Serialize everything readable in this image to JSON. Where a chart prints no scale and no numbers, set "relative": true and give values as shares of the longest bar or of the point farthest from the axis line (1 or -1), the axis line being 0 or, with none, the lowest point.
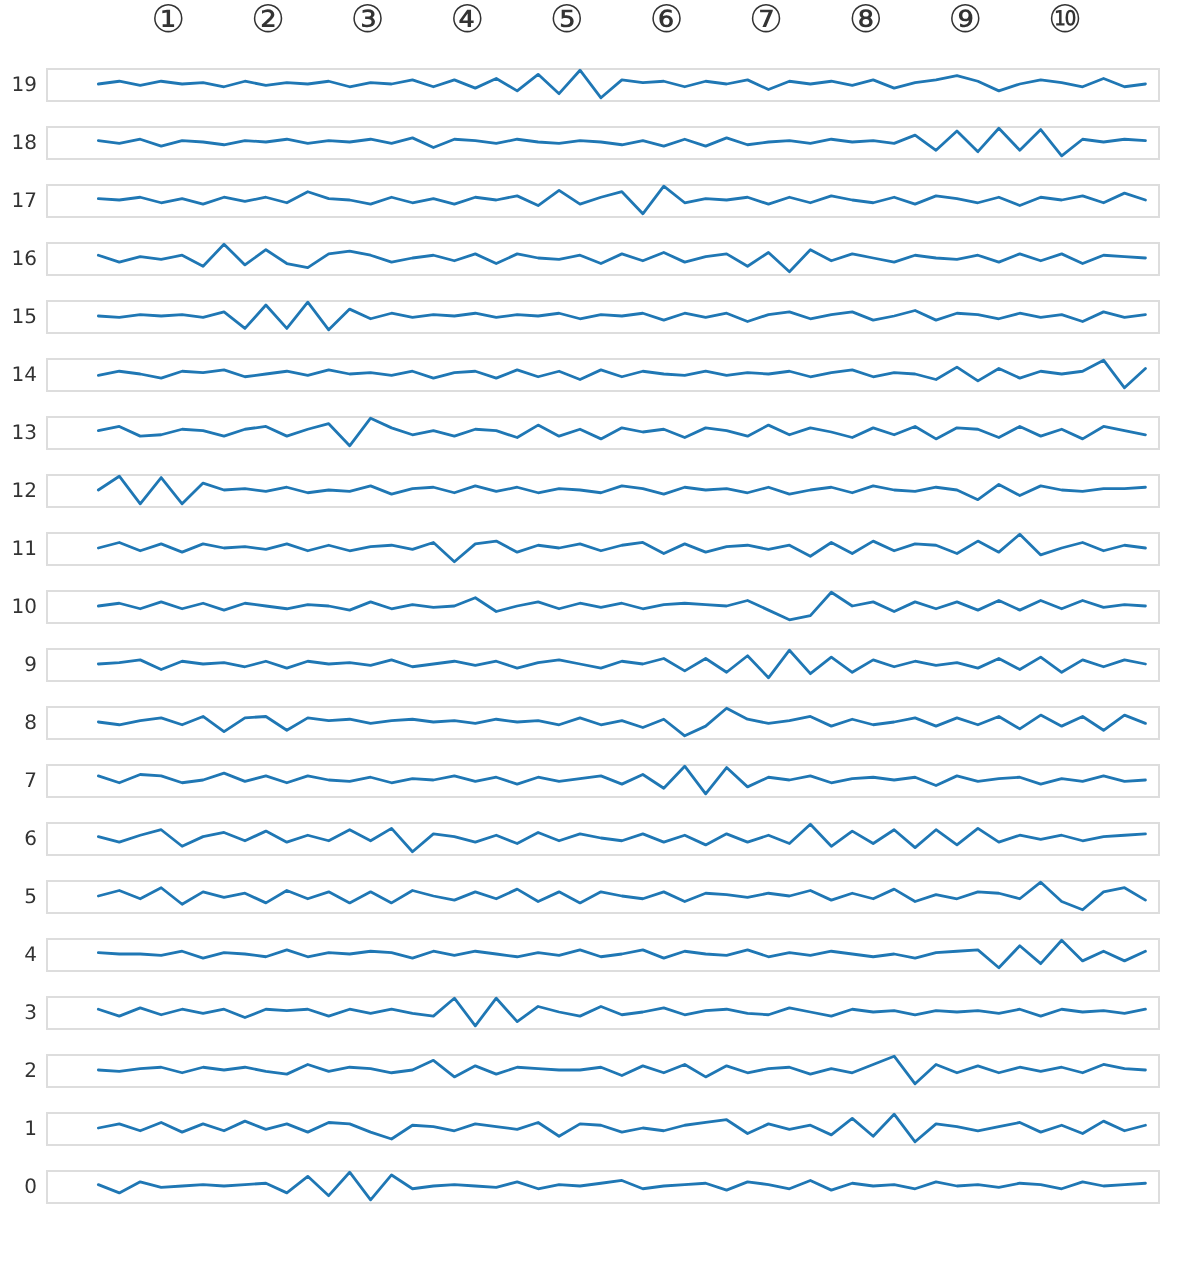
{
  "chart_data": [
    {
      "type": "line",
      "relative": true,
      "ylabel": "19",
      "tick_labels": false,
      "annotations": [
        "①",
        "②",
        "③",
        "④",
        "⑤",
        "⑥",
        "⑦",
        "⑧",
        "⑨",
        "⑩"
      ],
      "categories": [
        null,
        null,
        null,
        null,
        null,
        null,
        null,
        null,
        null,
        null,
        null,
        null,
        null,
        null,
        null,
        null,
        null,
        null,
        null,
        null,
        null,
        null,
        null,
        null,
        null,
        null,
        null,
        null,
        null,
        null,
        null,
        null,
        null,
        null,
        null,
        null,
        null,
        null,
        null,
        null,
        null,
        null,
        null,
        null,
        null,
        null,
        null,
        null,
        null,
        null,
        null
      ],
      "series": [
        {
          "color": "#1f77b4",
          "values": [
            0.5,
            0.6,
            0.45,
            0.6,
            0.5,
            0.55,
            0.4,
            0.6,
            0.45,
            0.55,
            0.5,
            0.6,
            0.4,
            0.55,
            0.5,
            0.65,
            0.4,
            0.65,
            0.35,
            0.7,
            0.25,
            0.85,
            0.15,
            1,
            0,
            0.65,
            0.55,
            0.6,
            0.4,
            0.6,
            0.5,
            0.65,
            0.3,
            0.6,
            0.5,
            0.6,
            0.45,
            0.65,
            0.35,
            0.55,
            0.65,
            0.8,
            0.6,
            0.25,
            0.5,
            0.65,
            0.55,
            0.4,
            0.7,
            0.4,
            0.5
          ]
        }
      ]
    },
    {
      "type": "line",
      "relative": true,
      "ylabel": "18",
      "tick_labels": false,
      "categories": [
        null,
        null,
        null,
        null,
        null,
        null,
        null,
        null,
        null,
        null,
        null,
        null,
        null,
        null,
        null,
        null,
        null,
        null,
        null,
        null,
        null,
        null,
        null,
        null,
        null,
        null,
        null,
        null,
        null,
        null,
        null,
        null,
        null,
        null,
        null,
        null,
        null,
        null,
        null,
        null,
        null,
        null,
        null,
        null,
        null,
        null,
        null,
        null,
        null,
        null,
        null
      ],
      "series": [
        {
          "color": "#1f77b4",
          "values": [
            0.55,
            0.45,
            0.6,
            0.35,
            0.55,
            0.5,
            0.4,
            0.55,
            0.5,
            0.6,
            0.45,
            0.55,
            0.5,
            0.6,
            0.45,
            0.65,
            0.3,
            0.6,
            0.55,
            0.45,
            0.6,
            0.5,
            0.45,
            0.55,
            0.5,
            0.4,
            0.55,
            0.35,
            0.6,
            0.35,
            0.65,
            0.4,
            0.5,
            0.55,
            0.45,
            0.6,
            0.5,
            0.55,
            0.45,
            0.75,
            0.2,
            0.9,
            0.15,
            1,
            0.2,
            0.95,
            0,
            0.6,
            0.5,
            0.6,
            0.55
          ]
        }
      ]
    },
    {
      "type": "line",
      "relative": true,
      "ylabel": "17",
      "tick_labels": false,
      "categories": [
        null,
        null,
        null,
        null,
        null,
        null,
        null,
        null,
        null,
        null,
        null,
        null,
        null,
        null,
        null,
        null,
        null,
        null,
        null,
        null,
        null,
        null,
        null,
        null,
        null,
        null,
        null,
        null,
        null,
        null,
        null,
        null,
        null,
        null,
        null,
        null,
        null,
        null,
        null,
        null,
        null,
        null,
        null,
        null,
        null,
        null,
        null,
        null,
        null,
        null,
        null
      ],
      "series": [
        {
          "color": "#1f77b4",
          "values": [
            0.55,
            0.5,
            0.6,
            0.4,
            0.55,
            0.35,
            0.6,
            0.45,
            0.6,
            0.4,
            0.8,
            0.55,
            0.5,
            0.35,
            0.6,
            0.4,
            0.55,
            0.35,
            0.6,
            0.5,
            0.65,
            0.3,
            0.85,
            0.35,
            0.6,
            0.8,
            0,
            1,
            0.4,
            0.55,
            0.5,
            0.6,
            0.35,
            0.6,
            0.4,
            0.65,
            0.5,
            0.4,
            0.6,
            0.35,
            0.65,
            0.55,
            0.4,
            0.6,
            0.3,
            0.6,
            0.5,
            0.65,
            0.4,
            0.75,
            0.5
          ]
        }
      ]
    },
    {
      "type": "line",
      "relative": true,
      "ylabel": "16",
      "tick_labels": false,
      "categories": [
        null,
        null,
        null,
        null,
        null,
        null,
        null,
        null,
        null,
        null,
        null,
        null,
        null,
        null,
        null,
        null,
        null,
        null,
        null,
        null,
        null,
        null,
        null,
        null,
        null,
        null,
        null,
        null,
        null,
        null,
        null,
        null,
        null,
        null,
        null,
        null,
        null,
        null,
        null,
        null,
        null,
        null,
        null,
        null,
        null,
        null,
        null,
        null,
        null,
        null,
        null
      ],
      "series": [
        {
          "color": "#1f77b4",
          "values": [
            0.6,
            0.35,
            0.55,
            0.45,
            0.6,
            0.2,
            1,
            0.25,
            0.8,
            0.3,
            0.15,
            0.65,
            0.75,
            0.6,
            0.35,
            0.5,
            0.6,
            0.4,
            0.65,
            0.3,
            0.65,
            0.5,
            0.45,
            0.6,
            0.3,
            0.65,
            0.4,
            0.7,
            0.35,
            0.55,
            0.65,
            0.2,
            0.7,
            0,
            0.8,
            0.4,
            0.65,
            0.5,
            0.35,
            0.6,
            0.5,
            0.45,
            0.6,
            0.35,
            0.65,
            0.4,
            0.65,
            0.3,
            0.6,
            0.55,
            0.5
          ]
        }
      ]
    },
    {
      "type": "line",
      "relative": true,
      "ylabel": "15",
      "tick_labels": false,
      "categories": [
        null,
        null,
        null,
        null,
        null,
        null,
        null,
        null,
        null,
        null,
        null,
        null,
        null,
        null,
        null,
        null,
        null,
        null,
        null,
        null,
        null,
        null,
        null,
        null,
        null,
        null,
        null,
        null,
        null,
        null,
        null,
        null,
        null,
        null,
        null,
        null,
        null,
        null,
        null,
        null,
        null,
        null,
        null,
        null,
        null,
        null,
        null,
        null,
        null,
        null,
        null
      ],
      "series": [
        {
          "color": "#1f77b4",
          "values": [
            0.5,
            0.45,
            0.55,
            0.5,
            0.55,
            0.45,
            0.65,
            0.05,
            0.9,
            0.05,
            1,
            0,
            0.75,
            0.4,
            0.6,
            0.45,
            0.55,
            0.5,
            0.6,
            0.45,
            0.55,
            0.5,
            0.6,
            0.4,
            0.55,
            0.5,
            0.6,
            0.35,
            0.6,
            0.45,
            0.6,
            0.3,
            0.55,
            0.65,
            0.4,
            0.55,
            0.65,
            0.35,
            0.5,
            0.7,
            0.35,
            0.6,
            0.55,
            0.4,
            0.6,
            0.45,
            0.55,
            0.3,
            0.65,
            0.45,
            0.55
          ]
        }
      ]
    },
    {
      "type": "line",
      "relative": true,
      "ylabel": "14",
      "tick_labels": false,
      "categories": [
        null,
        null,
        null,
        null,
        null,
        null,
        null,
        null,
        null,
        null,
        null,
        null,
        null,
        null,
        null,
        null,
        null,
        null,
        null,
        null,
        null,
        null,
        null,
        null,
        null,
        null,
        null,
        null,
        null,
        null,
        null,
        null,
        null,
        null,
        null,
        null,
        null,
        null,
        null,
        null,
        null,
        null,
        null,
        null,
        null,
        null,
        null,
        null,
        null,
        null,
        null
      ],
      "series": [
        {
          "color": "#1f77b4",
          "values": [
            0.45,
            0.6,
            0.5,
            0.35,
            0.6,
            0.55,
            0.65,
            0.4,
            0.5,
            0.6,
            0.45,
            0.65,
            0.5,
            0.55,
            0.45,
            0.6,
            0.35,
            0.55,
            0.6,
            0.35,
            0.65,
            0.4,
            0.6,
            0.3,
            0.65,
            0.4,
            0.6,
            0.5,
            0.45,
            0.6,
            0.45,
            0.55,
            0.5,
            0.6,
            0.4,
            0.55,
            0.65,
            0.4,
            0.55,
            0.5,
            0.3,
            0.75,
            0.25,
            0.7,
            0.35,
            0.6,
            0.5,
            0.6,
            1,
            0,
            0.7
          ]
        }
      ]
    },
    {
      "type": "line",
      "relative": true,
      "ylabel": "13",
      "tick_labels": false,
      "categories": [
        null,
        null,
        null,
        null,
        null,
        null,
        null,
        null,
        null,
        null,
        null,
        null,
        null,
        null,
        null,
        null,
        null,
        null,
        null,
        null,
        null,
        null,
        null,
        null,
        null,
        null,
        null,
        null,
        null,
        null,
        null,
        null,
        null,
        null,
        null,
        null,
        null,
        null,
        null,
        null,
        null,
        null,
        null,
        null,
        null,
        null,
        null,
        null,
        null,
        null,
        null
      ],
      "series": [
        {
          "color": "#1f77b4",
          "values": [
            0.55,
            0.7,
            0.35,
            0.4,
            0.6,
            0.55,
            0.35,
            0.6,
            0.7,
            0.35,
            0.6,
            0.8,
            0,
            1,
            0.65,
            0.4,
            0.55,
            0.35,
            0.6,
            0.55,
            0.3,
            0.75,
            0.35,
            0.6,
            0.25,
            0.65,
            0.5,
            0.6,
            0.3,
            0.65,
            0.55,
            0.35,
            0.75,
            0.4,
            0.65,
            0.5,
            0.3,
            0.65,
            0.4,
            0.7,
            0.25,
            0.65,
            0.6,
            0.3,
            0.7,
            0.35,
            0.6,
            0.25,
            0.7,
            0.55,
            0.4
          ]
        }
      ]
    },
    {
      "type": "line",
      "relative": true,
      "ylabel": "12",
      "tick_labels": false,
      "categories": [
        null,
        null,
        null,
        null,
        null,
        null,
        null,
        null,
        null,
        null,
        null,
        null,
        null,
        null,
        null,
        null,
        null,
        null,
        null,
        null,
        null,
        null,
        null,
        null,
        null,
        null,
        null,
        null,
        null,
        null,
        null,
        null,
        null,
        null,
        null,
        null,
        null,
        null,
        null,
        null,
        null,
        null,
        null,
        null,
        null,
        null,
        null,
        null,
        null,
        null,
        null
      ],
      "series": [
        {
          "color": "#1f77b4",
          "values": [
            0.5,
            1,
            0,
            0.95,
            0,
            0.75,
            0.5,
            0.55,
            0.45,
            0.6,
            0.4,
            0.5,
            0.45,
            0.65,
            0.35,
            0.55,
            0.6,
            0.4,
            0.65,
            0.45,
            0.6,
            0.4,
            0.55,
            0.5,
            0.4,
            0.65,
            0.55,
            0.35,
            0.6,
            0.5,
            0.55,
            0.4,
            0.6,
            0.35,
            0.5,
            0.6,
            0.4,
            0.65,
            0.5,
            0.45,
            0.6,
            0.5,
            0.15,
            0.7,
            0.3,
            0.65,
            0.5,
            0.45,
            0.55,
            0.55,
            0.6
          ]
        }
      ]
    },
    {
      "type": "line",
      "relative": true,
      "ylabel": "11",
      "tick_labels": false,
      "categories": [
        null,
        null,
        null,
        null,
        null,
        null,
        null,
        null,
        null,
        null,
        null,
        null,
        null,
        null,
        null,
        null,
        null,
        null,
        null,
        null,
        null,
        null,
        null,
        null,
        null,
        null,
        null,
        null,
        null,
        null,
        null,
        null,
        null,
        null,
        null,
        null,
        null,
        null,
        null,
        null,
        null,
        null,
        null,
        null,
        null,
        null,
        null,
        null,
        null,
        null,
        null
      ],
      "series": [
        {
          "color": "#1f77b4",
          "values": [
            0.5,
            0.7,
            0.4,
            0.65,
            0.35,
            0.65,
            0.5,
            0.55,
            0.45,
            0.65,
            0.4,
            0.6,
            0.4,
            0.55,
            0.6,
            0.45,
            0.7,
            0,
            0.65,
            0.75,
            0.35,
            0.6,
            0.5,
            0.65,
            0.4,
            0.6,
            0.7,
            0.3,
            0.65,
            0.35,
            0.55,
            0.6,
            0.45,
            0.6,
            0.2,
            0.7,
            0.3,
            0.75,
            0.4,
            0.65,
            0.6,
            0.3,
            0.75,
            0.35,
            1,
            0.25,
            0.5,
            0.7,
            0.4,
            0.6,
            0.5
          ]
        }
      ]
    },
    {
      "type": "line",
      "relative": true,
      "ylabel": "10",
      "tick_labels": false,
      "categories": [
        null,
        null,
        null,
        null,
        null,
        null,
        null,
        null,
        null,
        null,
        null,
        null,
        null,
        null,
        null,
        null,
        null,
        null,
        null,
        null,
        null,
        null,
        null,
        null,
        null,
        null,
        null,
        null,
        null,
        null,
        null,
        null,
        null,
        null,
        null,
        null,
        null,
        null,
        null,
        null,
        null,
        null,
        null,
        null,
        null,
        null,
        null,
        null,
        null,
        null,
        null
      ],
      "series": [
        {
          "color": "#1f77b4",
          "values": [
            0.5,
            0.6,
            0.4,
            0.65,
            0.4,
            0.6,
            0.35,
            0.6,
            0.5,
            0.4,
            0.55,
            0.5,
            0.35,
            0.65,
            0.4,
            0.55,
            0.45,
            0.5,
            0.8,
            0.3,
            0.5,
            0.65,
            0.4,
            0.6,
            0.45,
            0.6,
            0.4,
            0.55,
            0.6,
            0.55,
            0.5,
            0.7,
            0.35,
            0,
            0.15,
            1,
            0.5,
            0.65,
            0.3,
            0.65,
            0.4,
            0.65,
            0.35,
            0.7,
            0.35,
            0.7,
            0.4,
            0.7,
            0.45,
            0.55,
            0.5
          ]
        }
      ]
    },
    {
      "type": "line",
      "relative": true,
      "ylabel": "9",
      "tick_labels": false,
      "categories": [
        null,
        null,
        null,
        null,
        null,
        null,
        null,
        null,
        null,
        null,
        null,
        null,
        null,
        null,
        null,
        null,
        null,
        null,
        null,
        null,
        null,
        null,
        null,
        null,
        null,
        null,
        null,
        null,
        null,
        null,
        null,
        null,
        null,
        null,
        null,
        null,
        null,
        null,
        null,
        null,
        null,
        null,
        null,
        null,
        null,
        null,
        null,
        null,
        null,
        null,
        null
      ],
      "series": [
        {
          "color": "#1f77b4",
          "values": [
            0.5,
            0.55,
            0.65,
            0.3,
            0.6,
            0.5,
            0.55,
            0.4,
            0.6,
            0.35,
            0.6,
            0.5,
            0.55,
            0.45,
            0.65,
            0.4,
            0.5,
            0.6,
            0.45,
            0.6,
            0.35,
            0.55,
            0.65,
            0.5,
            0.35,
            0.6,
            0.5,
            0.7,
            0.25,
            0.7,
            0.2,
            0.8,
            0,
            1,
            0.15,
            0.75,
            0.2,
            0.65,
            0.4,
            0.6,
            0.45,
            0.55,
            0.35,
            0.7,
            0.3,
            0.75,
            0.2,
            0.65,
            0.4,
            0.65,
            0.5
          ]
        }
      ]
    },
    {
      "type": "line",
      "relative": true,
      "ylabel": "8",
      "tick_labels": false,
      "categories": [
        null,
        null,
        null,
        null,
        null,
        null,
        null,
        null,
        null,
        null,
        null,
        null,
        null,
        null,
        null,
        null,
        null,
        null,
        null,
        null,
        null,
        null,
        null,
        null,
        null,
        null,
        null,
        null,
        null,
        null,
        null,
        null,
        null,
        null,
        null,
        null,
        null,
        null,
        null,
        null,
        null,
        null,
        null,
        null,
        null,
        null,
        null,
        null,
        null,
        null,
        null
      ],
      "series": [
        {
          "color": "#1f77b4",
          "values": [
            0.5,
            0.4,
            0.55,
            0.65,
            0.4,
            0.7,
            0.15,
            0.65,
            0.7,
            0.2,
            0.65,
            0.55,
            0.6,
            0.45,
            0.55,
            0.6,
            0.5,
            0.55,
            0.45,
            0.6,
            0.5,
            0.55,
            0.4,
            0.65,
            0.4,
            0.55,
            0.3,
            0.6,
            0,
            0.35,
            1,
            0.6,
            0.45,
            0.55,
            0.7,
            0.35,
            0.6,
            0.4,
            0.5,
            0.65,
            0.35,
            0.65,
            0.4,
            0.7,
            0.25,
            0.75,
            0.35,
            0.7,
            0.2,
            0.75,
            0.45
          ]
        }
      ]
    },
    {
      "type": "line",
      "relative": true,
      "ylabel": "7",
      "tick_labels": false,
      "categories": [
        null,
        null,
        null,
        null,
        null,
        null,
        null,
        null,
        null,
        null,
        null,
        null,
        null,
        null,
        null,
        null,
        null,
        null,
        null,
        null,
        null,
        null,
        null,
        null,
        null,
        null,
        null,
        null,
        null,
        null,
        null,
        null,
        null,
        null,
        null,
        null,
        null,
        null,
        null,
        null,
        null,
        null,
        null,
        null,
        null,
        null,
        null,
        null,
        null,
        null,
        null
      ],
      "series": [
        {
          "color": "#1f77b4",
          "values": [
            0.65,
            0.4,
            0.7,
            0.65,
            0.4,
            0.5,
            0.75,
            0.45,
            0.65,
            0.4,
            0.65,
            0.5,
            0.45,
            0.6,
            0.4,
            0.55,
            0.5,
            0.65,
            0.45,
            0.6,
            0.35,
            0.6,
            0.45,
            0.55,
            0.65,
            0.35,
            0.7,
            0.2,
            1,
            0,
            0.95,
            0.25,
            0.6,
            0.5,
            0.65,
            0.4,
            0.55,
            0.6,
            0.5,
            0.6,
            0.3,
            0.65,
            0.45,
            0.55,
            0.6,
            0.35,
            0.55,
            0.45,
            0.65,
            0.45,
            0.5
          ]
        }
      ]
    },
    {
      "type": "line",
      "relative": true,
      "ylabel": "6",
      "tick_labels": false,
      "categories": [
        null,
        null,
        null,
        null,
        null,
        null,
        null,
        null,
        null,
        null,
        null,
        null,
        null,
        null,
        null,
        null,
        null,
        null,
        null,
        null,
        null,
        null,
        null,
        null,
        null,
        null,
        null,
        null,
        null,
        null,
        null,
        null,
        null,
        null,
        null,
        null,
        null,
        null,
        null,
        null,
        null,
        null,
        null,
        null,
        null,
        null,
        null,
        null,
        null,
        null,
        null
      ],
      "series": [
        {
          "color": "#1f77b4",
          "values": [
            0.55,
            0.35,
            0.6,
            0.8,
            0.2,
            0.55,
            0.7,
            0.4,
            0.75,
            0.35,
            0.6,
            0.4,
            0.8,
            0.4,
            0.85,
            0,
            0.65,
            0.55,
            0.35,
            0.6,
            0.3,
            0.7,
            0.4,
            0.65,
            0.5,
            0.4,
            0.65,
            0.35,
            0.6,
            0.25,
            0.65,
            0.35,
            0.6,
            0.3,
            1,
            0.2,
            0.75,
            0.3,
            0.8,
            0.15,
            0.8,
            0.25,
            0.85,
            0.35,
            0.6,
            0.45,
            0.6,
            0.4,
            0.55,
            0.6,
            0.65
          ]
        }
      ]
    },
    {
      "type": "line",
      "relative": true,
      "ylabel": "5",
      "tick_labels": false,
      "categories": [
        null,
        null,
        null,
        null,
        null,
        null,
        null,
        null,
        null,
        null,
        null,
        null,
        null,
        null,
        null,
        null,
        null,
        null,
        null,
        null,
        null,
        null,
        null,
        null,
        null,
        null,
        null,
        null,
        null,
        null,
        null,
        null,
        null,
        null,
        null,
        null,
        null,
        null,
        null,
        null,
        null,
        null,
        null,
        null,
        null,
        null,
        null,
        null,
        null,
        null,
        null
      ],
      "series": [
        {
          "color": "#1f77b4",
          "values": [
            0.5,
            0.7,
            0.4,
            0.8,
            0.2,
            0.65,
            0.45,
            0.6,
            0.25,
            0.7,
            0.4,
            0.65,
            0.25,
            0.65,
            0.25,
            0.7,
            0.5,
            0.35,
            0.65,
            0.4,
            0.75,
            0.3,
            0.65,
            0.25,
            0.65,
            0.5,
            0.4,
            0.65,
            0.3,
            0.6,
            0.55,
            0.45,
            0.6,
            0.5,
            0.7,
            0.35,
            0.6,
            0.4,
            0.75,
            0.3,
            0.55,
            0.4,
            0.65,
            0.6,
            0.4,
            1,
            0.3,
            0,
            0.65,
            0.8,
            0.35
          ]
        }
      ]
    },
    {
      "type": "line",
      "relative": true,
      "ylabel": "4",
      "tick_labels": false,
      "categories": [
        null,
        null,
        null,
        null,
        null,
        null,
        null,
        null,
        null,
        null,
        null,
        null,
        null,
        null,
        null,
        null,
        null,
        null,
        null,
        null,
        null,
        null,
        null,
        null,
        null,
        null,
        null,
        null,
        null,
        null,
        null,
        null,
        null,
        null,
        null,
        null,
        null,
        null,
        null,
        null,
        null,
        null,
        null,
        null,
        null,
        null,
        null,
        null,
        null,
        null,
        null
      ],
      "series": [
        {
          "color": "#1f77b4",
          "values": [
            0.55,
            0.5,
            0.5,
            0.45,
            0.6,
            0.35,
            0.55,
            0.5,
            0.4,
            0.65,
            0.4,
            0.55,
            0.5,
            0.6,
            0.55,
            0.35,
            0.6,
            0.45,
            0.6,
            0.5,
            0.4,
            0.55,
            0.45,
            0.65,
            0.4,
            0.5,
            0.65,
            0.35,
            0.6,
            0.5,
            0.45,
            0.65,
            0.4,
            0.55,
            0.45,
            0.6,
            0.5,
            0.4,
            0.5,
            0.35,
            0.55,
            0.6,
            0.65,
            0,
            0.8,
            0.15,
            1,
            0.25,
            0.6,
            0.25,
            0.6
          ]
        }
      ]
    },
    {
      "type": "line",
      "relative": true,
      "ylabel": "3",
      "tick_labels": false,
      "categories": [
        null,
        null,
        null,
        null,
        null,
        null,
        null,
        null,
        null,
        null,
        null,
        null,
        null,
        null,
        null,
        null,
        null,
        null,
        null,
        null,
        null,
        null,
        null,
        null,
        null,
        null,
        null,
        null,
        null,
        null,
        null,
        null,
        null,
        null,
        null,
        null,
        null,
        null,
        null,
        null,
        null,
        null,
        null,
        null,
        null,
        null,
        null,
        null,
        null,
        null,
        null
      ],
      "series": [
        {
          "color": "#1f77b4",
          "values": [
            0.6,
            0.35,
            0.65,
            0.4,
            0.6,
            0.45,
            0.6,
            0.3,
            0.6,
            0.55,
            0.6,
            0.35,
            0.6,
            0.45,
            0.6,
            0.45,
            0.35,
            1,
            0,
            1,
            0.15,
            0.7,
            0.5,
            0.35,
            0.7,
            0.4,
            0.5,
            0.65,
            0.4,
            0.55,
            0.6,
            0.45,
            0.4,
            0.65,
            0.5,
            0.35,
            0.6,
            0.5,
            0.55,
            0.4,
            0.55,
            0.5,
            0.55,
            0.45,
            0.6,
            0.35,
            0.6,
            0.5,
            0.55,
            0.45,
            0.6
          ]
        }
      ]
    },
    {
      "type": "line",
      "relative": true,
      "ylabel": "2",
      "tick_labels": false,
      "categories": [
        null,
        null,
        null,
        null,
        null,
        null,
        null,
        null,
        null,
        null,
        null,
        null,
        null,
        null,
        null,
        null,
        null,
        null,
        null,
        null,
        null,
        null,
        null,
        null,
        null,
        null,
        null,
        null,
        null,
        null,
        null,
        null,
        null,
        null,
        null,
        null,
        null,
        null,
        null,
        null,
        null,
        null,
        null,
        null,
        null,
        null,
        null,
        null,
        null,
        null,
        null
      ],
      "series": [
        {
          "color": "#1f77b4",
          "values": [
            0.5,
            0.45,
            0.55,
            0.6,
            0.4,
            0.6,
            0.5,
            0.6,
            0.45,
            0.35,
            0.7,
            0.45,
            0.6,
            0.55,
            0.4,
            0.5,
            0.85,
            0.25,
            0.65,
            0.35,
            0.6,
            0.55,
            0.5,
            0.5,
            0.6,
            0.3,
            0.65,
            0.4,
            0.7,
            0.25,
            0.65,
            0.4,
            0.55,
            0.6,
            0.35,
            0.55,
            0.4,
            0.7,
            1,
            0,
            0.7,
            0.4,
            0.65,
            0.4,
            0.6,
            0.45,
            0.6,
            0.4,
            0.7,
            0.55,
            0.5
          ]
        }
      ]
    },
    {
      "type": "line",
      "relative": true,
      "ylabel": "1",
      "tick_labels": false,
      "categories": [
        null,
        null,
        null,
        null,
        null,
        null,
        null,
        null,
        null,
        null,
        null,
        null,
        null,
        null,
        null,
        null,
        null,
        null,
        null,
        null,
        null,
        null,
        null,
        null,
        null,
        null,
        null,
        null,
        null,
        null,
        null,
        null,
        null,
        null,
        null,
        null,
        null,
        null,
        null,
        null,
        null,
        null,
        null,
        null,
        null,
        null,
        null,
        null,
        null,
        null,
        null
      ],
      "series": [
        {
          "color": "#1f77b4",
          "values": [
            0.5,
            0.65,
            0.4,
            0.7,
            0.35,
            0.65,
            0.4,
            0.75,
            0.45,
            0.65,
            0.35,
            0.7,
            0.65,
            0.35,
            0.1,
            0.6,
            0.55,
            0.4,
            0.65,
            0.55,
            0.45,
            0.7,
            0.2,
            0.65,
            0.6,
            0.35,
            0.5,
            0.4,
            0.6,
            0.7,
            0.8,
            0.3,
            0.65,
            0.45,
            0.6,
            0.25,
            0.85,
            0.2,
            1,
            0,
            0.65,
            0.55,
            0.4,
            0.55,
            0.7,
            0.35,
            0.6,
            0.3,
            0.75,
            0.4,
            0.6
          ]
        }
      ]
    },
    {
      "type": "line",
      "relative": true,
      "ylabel": "0",
      "tick_labels": false,
      "categories": [
        null,
        null,
        null,
        null,
        null,
        null,
        null,
        null,
        null,
        null,
        null,
        null,
        null,
        null,
        null,
        null,
        null,
        null,
        null,
        null,
        null,
        null,
        null,
        null,
        null,
        null,
        null,
        null,
        null,
        null,
        null,
        null,
        null,
        null,
        null,
        null,
        null,
        null,
        null,
        null,
        null,
        null,
        null,
        null,
        null,
        null,
        null,
        null,
        null,
        null,
        null
      ],
      "series": [
        {
          "color": "#1f77b4",
          "values": [
            0.55,
            0.25,
            0.65,
            0.45,
            0.5,
            0.55,
            0.5,
            0.55,
            0.6,
            0.25,
            0.85,
            0.15,
            1,
            0,
            0.9,
            0.4,
            0.5,
            0.55,
            0.5,
            0.45,
            0.65,
            0.4,
            0.55,
            0.5,
            0.6,
            0.7,
            0.4,
            0.5,
            0.55,
            0.6,
            0.35,
            0.65,
            0.55,
            0.4,
            0.7,
            0.35,
            0.6,
            0.5,
            0.55,
            0.4,
            0.65,
            0.5,
            0.55,
            0.45,
            0.6,
            0.55,
            0.4,
            0.65,
            0.5,
            0.55,
            0.6
          ]
        }
      ]
    }
  ]
}
